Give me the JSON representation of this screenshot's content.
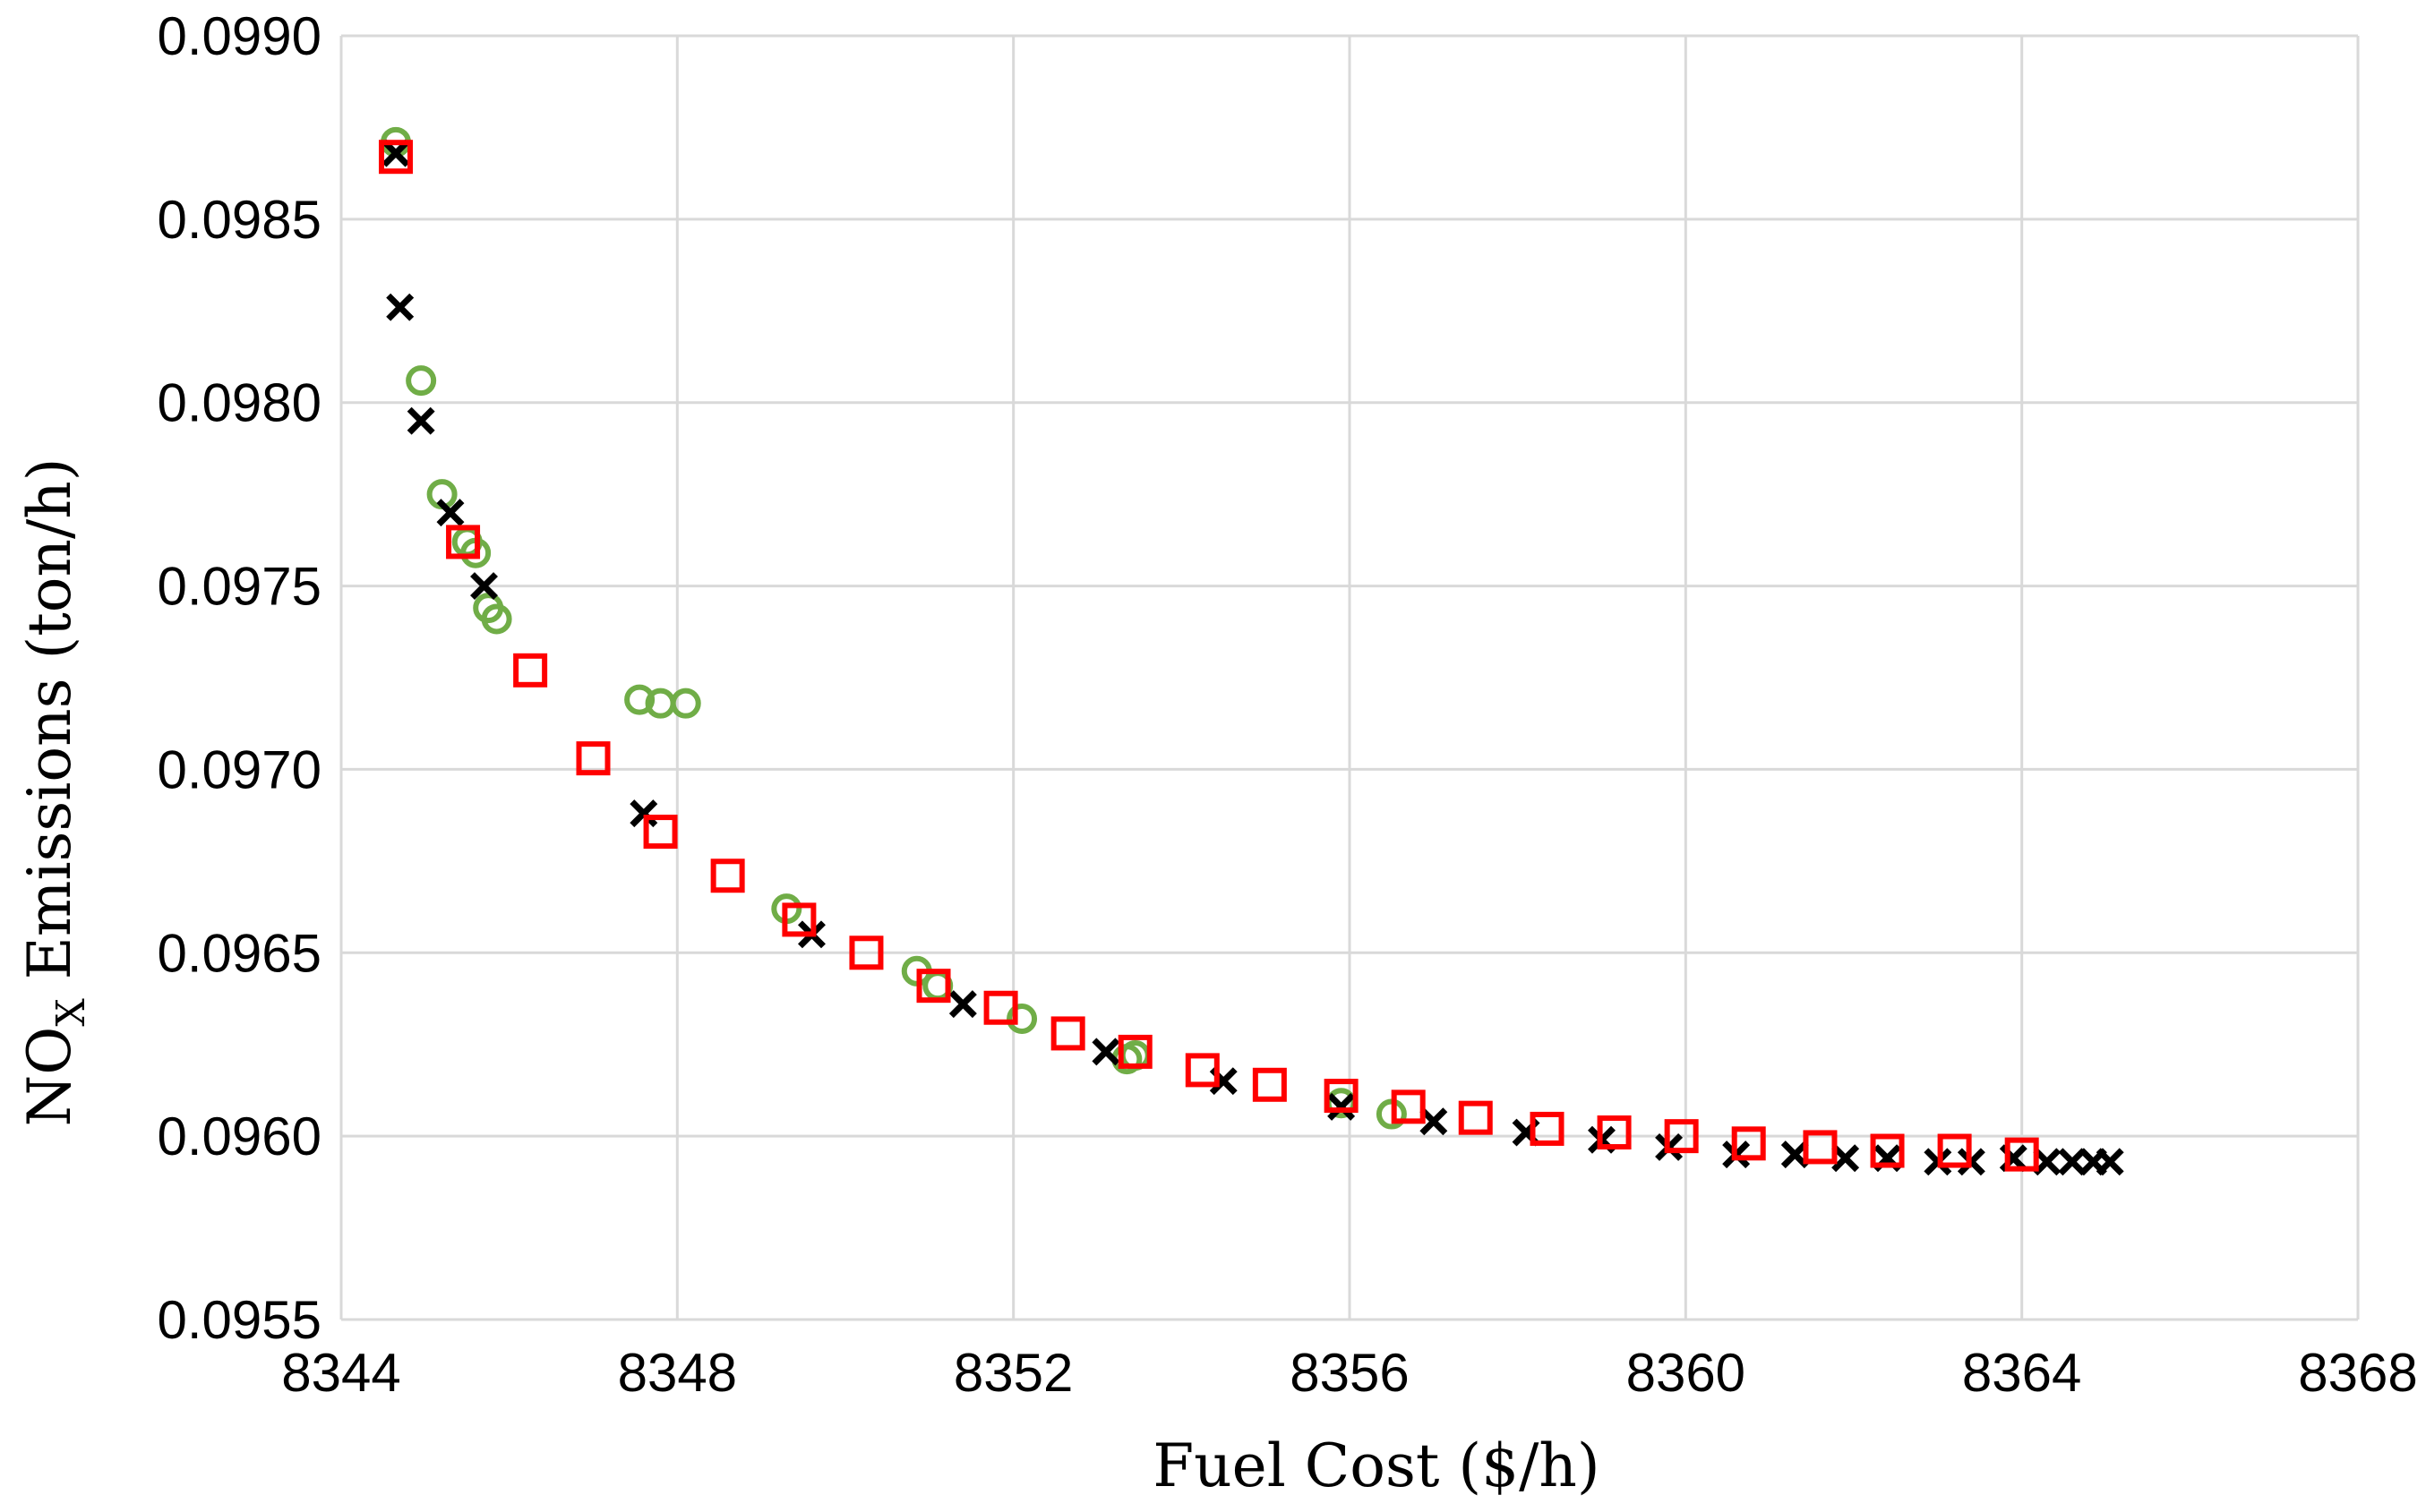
{
  "chart_data": {
    "type": "scatter",
    "title": "",
    "xlabel": "Fuel Cost ($/h)",
    "ylabel": {
      "prefix": "NO",
      "subscript": "X",
      "suffix": " Emissions (ton/h)"
    },
    "xlim": [
      8344,
      8368
    ],
    "ylim": [
      0.0955,
      0.099
    ],
    "x_ticks": [
      8344,
      8348,
      8352,
      8356,
      8360,
      8364,
      8368
    ],
    "x_tick_labels": [
      "8344",
      "8348",
      "8352",
      "8356",
      "8360",
      "8364",
      "8368"
    ],
    "y_ticks": [
      0.0955,
      0.096,
      0.0965,
      0.097,
      0.0975,
      0.098,
      0.0985,
      0.099
    ],
    "y_tick_labels": [
      "0.0955",
      "0.0960",
      "0.0965",
      "0.0970",
      "0.0975",
      "0.0980",
      "0.0985",
      "0.0990"
    ],
    "grid": true,
    "legend": "none",
    "series": [
      {
        "name": "circles",
        "marker": "circle",
        "color": "#70ad47",
        "points": [
          [
            8344.65,
            0.09871
          ],
          [
            8344.95,
            0.09806
          ],
          [
            8345.2,
            0.09775
          ],
          [
            8345.5,
            0.09762
          ],
          [
            8345.6,
            0.09759
          ],
          [
            8345.75,
            0.09744
          ],
          [
            8345.85,
            0.09741
          ],
          [
            8347.55,
            0.09719
          ],
          [
            8347.8,
            0.09718
          ],
          [
            8348.1,
            0.09718
          ],
          [
            8349.3,
            0.09662
          ],
          [
            8350.85,
            0.09645
          ],
          [
            8351.1,
            0.09641
          ],
          [
            8352.1,
            0.09632
          ],
          [
            8353.35,
            0.09621
          ],
          [
            8353.45,
            0.09622
          ],
          [
            8355.9,
            0.09609
          ],
          [
            8356.5,
            0.09606
          ]
        ]
      },
      {
        "name": "crosses",
        "marker": "x",
        "color": "#000000",
        "points": [
          [
            8344.65,
            0.09868
          ],
          [
            8344.7,
            0.09826
          ],
          [
            8344.95,
            0.09795
          ],
          [
            8345.3,
            0.0977
          ],
          [
            8345.7,
            0.0975
          ],
          [
            8347.6,
            0.09688
          ],
          [
            8349.6,
            0.09655
          ],
          [
            8351.4,
            0.09636
          ],
          [
            8353.1,
            0.09623
          ],
          [
            8354.5,
            0.09615
          ],
          [
            8355.9,
            0.09608
          ],
          [
            8357.0,
            0.09604
          ],
          [
            8358.1,
            0.09601
          ],
          [
            8359.0,
            0.09599
          ],
          [
            8359.8,
            0.09597
          ],
          [
            8360.6,
            0.09595
          ],
          [
            8361.3,
            0.09595
          ],
          [
            8361.9,
            0.09594
          ],
          [
            8362.4,
            0.09594
          ],
          [
            8363.0,
            0.09593
          ],
          [
            8363.4,
            0.09593
          ],
          [
            8363.9,
            0.09594
          ],
          [
            8364.3,
            0.09593
          ],
          [
            8364.6,
            0.09593
          ],
          [
            8364.85,
            0.09593
          ],
          [
            8365.05,
            0.09593
          ]
        ]
      },
      {
        "name": "squares",
        "marker": "square",
        "color": "#ff0000",
        "points": [
          [
            8344.65,
            0.09867
          ],
          [
            8345.45,
            0.09762
          ],
          [
            8346.25,
            0.09727
          ],
          [
            8347.0,
            0.09703
          ],
          [
            8347.8,
            0.09683
          ],
          [
            8348.6,
            0.09671
          ],
          [
            8349.45,
            0.09659
          ],
          [
            8350.25,
            0.0965
          ],
          [
            8351.05,
            0.09641
          ],
          [
            8351.85,
            0.09635
          ],
          [
            8352.65,
            0.09628
          ],
          [
            8353.45,
            0.09623
          ],
          [
            8354.25,
            0.09618
          ],
          [
            8355.05,
            0.09614
          ],
          [
            8355.9,
            0.09611
          ],
          [
            8356.7,
            0.09608
          ],
          [
            8357.5,
            0.09605
          ],
          [
            8358.35,
            0.09602
          ],
          [
            8359.15,
            0.09601
          ],
          [
            8359.95,
            0.096
          ],
          [
            8360.75,
            0.09598
          ],
          [
            8361.6,
            0.09597
          ],
          [
            8362.4,
            0.09596
          ],
          [
            8363.2,
            0.09596
          ],
          [
            8364.0,
            0.09595
          ]
        ]
      }
    ]
  }
}
